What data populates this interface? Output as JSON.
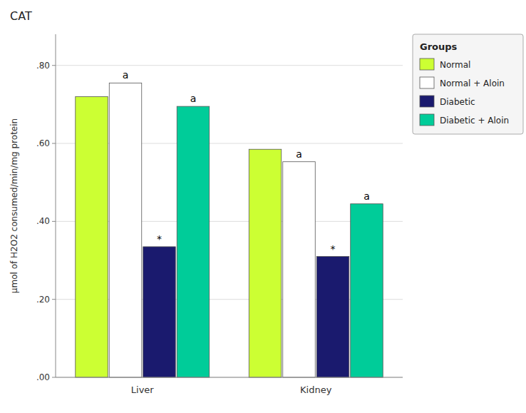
{
  "chart_data": {
    "type": "bar",
    "title": "CAT",
    "ylabel": "μmol of H2O2 consumed/min/mg protein",
    "categories": [
      "Liver",
      "Kidney"
    ],
    "series": [
      {
        "name": "Normal",
        "color": "#ccff33",
        "values": [
          0.72,
          0.585
        ]
      },
      {
        "name": "Normal + Aloin",
        "color": "#ffffff",
        "values": [
          0.755,
          0.553
        ]
      },
      {
        "name": "Diabetic",
        "color": "#1a1a6e",
        "values": [
          0.335,
          0.31
        ]
      },
      {
        "name": "Diabetic + Aloin",
        "color": "#00cc99",
        "values": [
          0.695,
          0.445
        ]
      }
    ],
    "ylim": [
      0.0,
      0.88
    ],
    "yticks": [
      {
        "value": 0.0,
        "label": ".00"
      },
      {
        "value": 0.2,
        "label": ".20"
      },
      {
        "value": 0.4,
        "label": ".40"
      },
      {
        "value": 0.6,
        "label": ".60"
      },
      {
        "value": 0.8,
        "label": ".80"
      }
    ],
    "annotations": [
      {
        "category": "Liver",
        "series": "Normal + Aloin",
        "text": "a"
      },
      {
        "category": "Liver",
        "series": "Diabetic",
        "text": "*"
      },
      {
        "category": "Liver",
        "series": "Diabetic + Aloin",
        "text": "a"
      },
      {
        "category": "Kidney",
        "series": "Normal + Aloin",
        "text": "a"
      },
      {
        "category": "Kidney",
        "series": "Diabetic",
        "text": "*"
      },
      {
        "category": "Kidney",
        "series": "Diabetic + Aloin",
        "text": "a"
      }
    ],
    "legend_title": "Groups",
    "legend": "right",
    "grid": true
  }
}
